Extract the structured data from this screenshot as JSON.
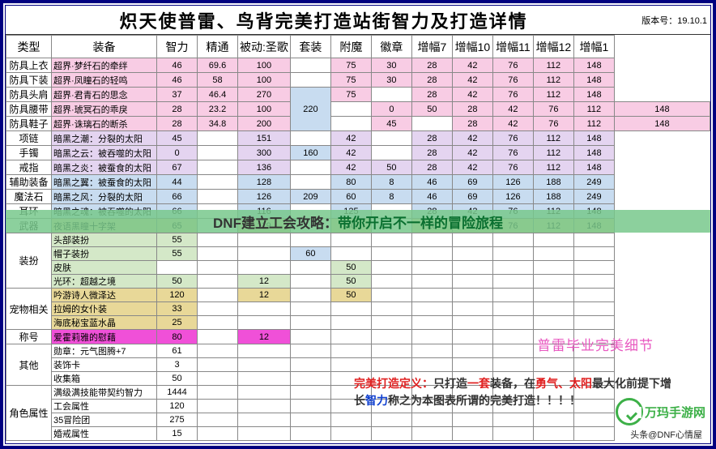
{
  "title": "炽天使普雷、鸟背完美打造站街智力及打造详情",
  "version": "版本号：19.10.1",
  "banner": {
    "p1": "DNF建立工会攻略：",
    "p2": "带你开启不一样的冒险旅程"
  },
  "perfect_label": "普雷毕业完美细节",
  "def": {
    "t1": "完美打造定义：",
    "t2": "只打造",
    "t3": "一套",
    "t4": "装备，在",
    "t5": "勇气、太阳",
    "t6": "最大化前提下增",
    "t7": "长",
    "t8": "智力",
    "t9": "称之为本图表所谓的完美打造！！！！"
  },
  "logo": "万玛手游网",
  "footer": "头条@DNF心情屋",
  "colors": {
    "hdr": "#c2c2c2",
    "pink": "#f8cce4",
    "lav": "#e4d4f0",
    "blue": "#c8dcf0",
    "tan": "#e8d898",
    "grn": "#d4e8c8",
    "mag": "#f050d8"
  },
  "headers": [
    "类型",
    "装备",
    "智力",
    "精通",
    "被动:圣歌",
    "套装",
    "附魔",
    "徽章",
    "增幅7",
    "增幅10",
    "增幅11",
    "增幅12",
    "增幅1"
  ],
  "groups": [
    {
      "cat": "防具上衣",
      "rows": [
        {
          "n": "超界·梦纤石的牵绊",
          "c": "pink",
          "v": [
            "46",
            "69.6",
            "100",
            "",
            "75",
            "30",
            "28",
            "42",
            "76",
            "112",
            "148"
          ]
        }
      ]
    },
    {
      "cat": "防具下装",
      "rows": [
        {
          "n": "超界·凤瞳石的轻鸣",
          "c": "pink",
          "v": [
            "46",
            "58",
            "100",
            "",
            "75",
            "30",
            "28",
            "42",
            "76",
            "112",
            "148"
          ]
        }
      ]
    },
    {
      "cat": "防具头肩",
      "rows": [
        {
          "n": "超界·君青石的思念",
          "c": "pink",
          "v": [
            "37",
            "46.4",
            "270",
            "220",
            "75",
            "",
            "28",
            "42",
            "76",
            "112",
            "148"
          ],
          "setspan": 3,
          "setcolor": "blue"
        }
      ]
    },
    {
      "cat": "防具腰带",
      "rows": [
        {
          "n": "超界·琥冥石的乖戾",
          "c": "pink",
          "v": [
            "28",
            "23.2",
            "100",
            "",
            "0",
            "50",
            "28",
            "42",
            "76",
            "112",
            "148"
          ]
        }
      ]
    },
    {
      "cat": "防具鞋子",
      "rows": [
        {
          "n": "超界·诛璃石的断杀",
          "c": "pink",
          "v": [
            "28",
            "34.8",
            "200",
            "",
            "45",
            "",
            "28",
            "42",
            "76",
            "112",
            "148"
          ]
        }
      ]
    },
    {
      "cat": "项链",
      "rows": [
        {
          "n": "暗黑之潮：分裂的太阳",
          "c": "lav",
          "v": [
            "45",
            "",
            "151",
            "",
            "42",
            "",
            "28",
            "42",
            "76",
            "112",
            "148"
          ]
        }
      ]
    },
    {
      "cat": "手镯",
      "rows": [
        {
          "n": "暗黑之云：被吞噬的太阳",
          "c": "lav",
          "v": [
            "0",
            "",
            "300",
            "160",
            "42",
            "",
            "28",
            "42",
            "76",
            "112",
            "148"
          ],
          "setspan": 1,
          "setcolor": "blue"
        }
      ]
    },
    {
      "cat": "戒指",
      "rows": [
        {
          "n": "暗黑之炎：被蚕食的太阳",
          "c": "lav",
          "v": [
            "67",
            "",
            "136",
            "",
            "42",
            "50",
            "28",
            "42",
            "76",
            "112",
            "148"
          ]
        }
      ]
    },
    {
      "cat": "辅助装备",
      "rows": [
        {
          "n": "暗黑之翼：被蚕食的太阳",
          "c": "blue",
          "v": [
            "44",
            "",
            "128",
            "",
            "80",
            "8",
            "46",
            "69",
            "126",
            "188",
            "249"
          ]
        }
      ]
    },
    {
      "cat": "魔法石",
      "rows": [
        {
          "n": "暗黑之风：分裂的太阳",
          "c": "blue",
          "v": [
            "66",
            "",
            "126",
            "209",
            "60",
            "8",
            "46",
            "69",
            "126",
            "188",
            "249"
          ],
          "setspan": 1,
          "setcolor": "blue"
        }
      ]
    },
    {
      "cat": "耳环",
      "rows": [
        {
          "n": "暗黑之魂：被吞噬的太阳",
          "c": "blue",
          "v": [
            "66",
            "",
            "116",
            "",
            "125",
            "",
            "28",
            "42",
            "76",
            "112",
            "148"
          ]
        }
      ]
    },
    {
      "cat": "武器",
      "rows": [
        {
          "n": "夜语黑瞳十字架",
          "c": "tan",
          "v": [
            "65",
            "",
            "119",
            "",
            "40",
            "",
            "28",
            "42",
            "76",
            "112",
            "148"
          ]
        }
      ]
    },
    {
      "cat": "装扮",
      "span": 4,
      "rows": [
        {
          "n": "头部装扮",
          "c": "grn",
          "v": [
            "55",
            "",
            "",
            "",
            "",
            "",
            "",
            "",
            "",
            "",
            ""
          ]
        },
        {
          "n": "帽子装扮",
          "c": "grn",
          "v": [
            "55",
            "",
            "",
            "60",
            "",
            "",
            "",
            "",
            "",
            "",
            ""
          ],
          "setspan": 1,
          "setcolor": "blue"
        },
        {
          "n": "皮肤",
          "c": "grn",
          "v": [
            "",
            "",
            "",
            "",
            "50",
            "",
            "",
            "",
            "",
            "",
            ""
          ]
        },
        {
          "n": "光环：超越之境",
          "c": "grn",
          "v": [
            "50",
            "",
            "12",
            "",
            "50",
            "",
            "",
            "",
            "",
            "",
            ""
          ]
        }
      ]
    },
    {
      "cat": "宠物相关",
      "span": 3,
      "rows": [
        {
          "n": "吟游诗人微泽达",
          "c": "tan",
          "v": [
            "120",
            "",
            "12",
            "",
            "50",
            "",
            "",
            "",
            "",
            "",
            ""
          ]
        },
        {
          "n": "拉姆的女仆装",
          "c": "tan",
          "v": [
            "33",
            "",
            "",
            "",
            "",
            "",
            "",
            "",
            "",
            "",
            ""
          ]
        },
        {
          "n": "海底秘宝蓝水晶",
          "c": "tan",
          "v": [
            "25",
            "",
            "",
            "",
            "",
            "",
            "",
            "",
            "",
            "",
            ""
          ]
        }
      ]
    },
    {
      "cat": "称号",
      "rows": [
        {
          "n": "爱霍莉雅的慰藉",
          "c": "mag",
          "v": [
            "80",
            "",
            "12",
            "",
            "",
            "",
            "",
            "",
            "",
            "",
            ""
          ]
        }
      ]
    },
    {
      "cat": "其他",
      "span": 3,
      "rows": [
        {
          "n": "勋章：元气图腾+7",
          "c": "wht",
          "v": [
            "61",
            "",
            "",
            "",
            "",
            "",
            "",
            "",
            "",
            "",
            ""
          ]
        },
        {
          "n": "装饰卡",
          "c": "wht",
          "v": [
            "3",
            "",
            "",
            "",
            "",
            "",
            "",
            "",
            "",
            "",
            ""
          ]
        },
        {
          "n": "收集箱",
          "c": "wht",
          "v": [
            "50",
            "",
            "",
            "",
            "",
            "",
            "",
            "",
            "",
            "",
            ""
          ]
        }
      ]
    },
    {
      "cat": "角色属性",
      "span": 4,
      "rows": [
        {
          "n": "满级满技能带契约智力",
          "c": "wht",
          "v": [
            "1444",
            "",
            "",
            "",
            "",
            "",
            "",
            "",
            "",
            "",
            ""
          ]
        },
        {
          "n": "工会属性",
          "c": "wht",
          "v": [
            "120",
            "",
            "",
            "",
            "",
            "",
            "",
            "",
            "",
            "",
            ""
          ]
        },
        {
          "n": "35冒险团",
          "c": "wht",
          "v": [
            "275",
            "",
            "",
            "",
            "",
            "",
            "",
            "",
            "",
            "",
            ""
          ]
        },
        {
          "n": "婚戒属性",
          "c": "wht",
          "v": [
            "15",
            "",
            "",
            "",
            "",
            "",
            "",
            "",
            "",
            "",
            ""
          ]
        }
      ]
    }
  ]
}
